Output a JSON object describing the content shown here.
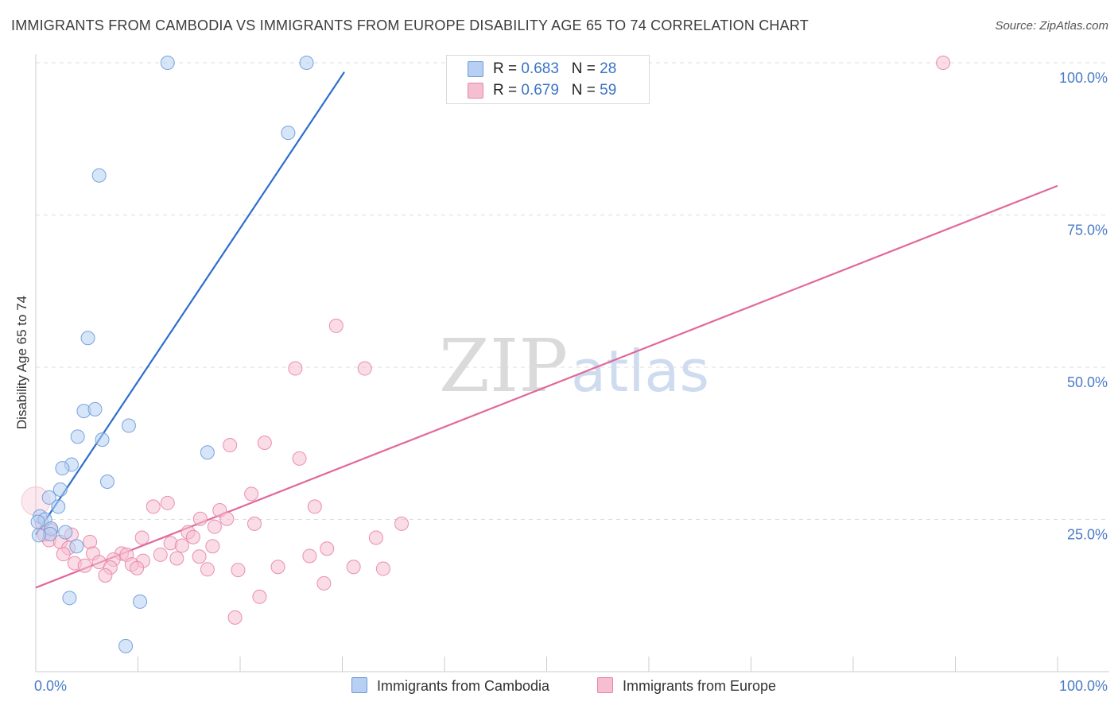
{
  "title": "IMMIGRANTS FROM CAMBODIA VS IMMIGRANTS FROM EUROPE DISABILITY AGE 65 TO 74 CORRELATION CHART",
  "source": "Source: ZipAtlas.com",
  "watermark": {
    "zip": "ZIP",
    "atlas": "atlas"
  },
  "colors": {
    "blue_fill": "#b7cff2",
    "blue_stroke": "#6c9ad8",
    "blue_line": "#2e6fca",
    "pink_fill": "#f6bfd1",
    "pink_stroke": "#e884a6",
    "pink_line": "#e0699a",
    "tick_label": "#4a7bc8",
    "grid": "#dcdcdc"
  },
  "legend_top": [
    {
      "r_label": "R = ",
      "r_value": "0.683",
      "n_label": "N = ",
      "n_value": "28"
    },
    {
      "r_label": "R = ",
      "r_value": "0.679",
      "n_label": "N = ",
      "n_value": "59"
    }
  ],
  "chart_data": {
    "type": "scatter",
    "title": "IMMIGRANTS FROM CAMBODIA VS IMMIGRANTS FROM EUROPE DISABILITY AGE 65 TO 74 CORRELATION CHART",
    "xlabel": "",
    "ylabel": "Disability Age 65 to 74",
    "xlim": [
      0,
      100
    ],
    "ylim": [
      0,
      100
    ],
    "x_tick_labels": [
      "0.0%",
      "100.0%"
    ],
    "y_ticks": [
      25,
      50,
      75,
      100
    ],
    "y_tick_labels": [
      "25.0%",
      "50.0%",
      "75.0%",
      "100.0%"
    ],
    "grid": true,
    "legend_position": "bottom-center",
    "series": [
      {
        "name": "Immigrants from Cambodia",
        "r": 0.683,
        "n": 28,
        "trend": {
          "x": [
            0.0,
            30.2
          ],
          "y": [
            22.5,
            98.5
          ]
        },
        "points": [
          [
            12.9,
            100.0
          ],
          [
            26.5,
            100.0
          ],
          [
            24.7,
            88.5
          ],
          [
            6.2,
            81.5
          ],
          [
            5.1,
            54.8
          ],
          [
            4.7,
            42.8
          ],
          [
            5.8,
            43.1
          ],
          [
            9.1,
            40.4
          ],
          [
            4.1,
            38.6
          ],
          [
            6.5,
            38.1
          ],
          [
            16.8,
            36.0
          ],
          [
            3.5,
            34.0
          ],
          [
            2.6,
            33.4
          ],
          [
            7.0,
            31.2
          ],
          [
            2.4,
            29.9
          ],
          [
            1.3,
            28.6
          ],
          [
            2.2,
            27.1
          ],
          [
            0.4,
            25.5
          ],
          [
            0.9,
            25.0
          ],
          [
            0.2,
            24.6
          ],
          [
            1.5,
            23.5
          ],
          [
            2.9,
            22.9
          ],
          [
            1.4,
            22.6
          ],
          [
            0.3,
            22.4
          ],
          [
            4.0,
            20.6
          ],
          [
            3.3,
            12.1
          ],
          [
            10.2,
            11.5
          ],
          [
            8.8,
            4.2
          ]
        ]
      },
      {
        "name": "Immigrants from Europe",
        "r": 0.679,
        "n": 59,
        "trend": {
          "x": [
            0.0,
            100.0
          ],
          "y": [
            13.8,
            79.8
          ]
        },
        "points": [
          [
            88.8,
            100.0
          ],
          [
            29.4,
            56.8
          ],
          [
            25.4,
            49.8
          ],
          [
            32.2,
            49.8
          ],
          [
            22.4,
            37.6
          ],
          [
            19.0,
            37.2
          ],
          [
            25.8,
            35.0
          ],
          [
            21.1,
            29.2
          ],
          [
            12.9,
            27.7
          ],
          [
            11.5,
            27.1
          ],
          [
            27.3,
            27.1
          ],
          [
            18.0,
            26.5
          ],
          [
            16.1,
            25.1
          ],
          [
            18.7,
            25.1
          ],
          [
            35.8,
            24.3
          ],
          [
            21.4,
            24.3
          ],
          [
            0.6,
            24.4
          ],
          [
            1.5,
            23.2
          ],
          [
            0.8,
            22.5
          ],
          [
            17.5,
            23.8
          ],
          [
            14.9,
            22.9
          ],
          [
            3.5,
            22.5
          ],
          [
            15.4,
            22.1
          ],
          [
            10.4,
            22.0
          ],
          [
            33.3,
            22.0
          ],
          [
            1.3,
            21.6
          ],
          [
            2.4,
            21.3
          ],
          [
            5.3,
            21.3
          ],
          [
            13.2,
            21.1
          ],
          [
            14.3,
            20.7
          ],
          [
            17.3,
            20.6
          ],
          [
            3.2,
            20.3
          ],
          [
            28.5,
            20.2
          ],
          [
            2.7,
            19.3
          ],
          [
            5.6,
            19.4
          ],
          [
            8.4,
            19.4
          ],
          [
            8.9,
            19.2
          ],
          [
            12.2,
            19.2
          ],
          [
            26.8,
            19.0
          ],
          [
            16.0,
            18.9
          ],
          [
            13.8,
            18.6
          ],
          [
            7.6,
            18.4
          ],
          [
            10.5,
            18.2
          ],
          [
            6.2,
            18.0
          ],
          [
            3.8,
            17.8
          ],
          [
            9.4,
            17.6
          ],
          [
            4.8,
            17.4
          ],
          [
            7.3,
            17.1
          ],
          [
            9.9,
            17.0
          ],
          [
            31.1,
            17.2
          ],
          [
            34.0,
            16.9
          ],
          [
            23.7,
            17.2
          ],
          [
            16.8,
            16.8
          ],
          [
            19.8,
            16.7
          ],
          [
            6.8,
            15.8
          ],
          [
            28.2,
            14.5
          ],
          [
            21.9,
            12.3
          ],
          [
            19.5,
            8.9
          ],
          [
            0.0,
            28.0
          ]
        ]
      }
    ]
  }
}
